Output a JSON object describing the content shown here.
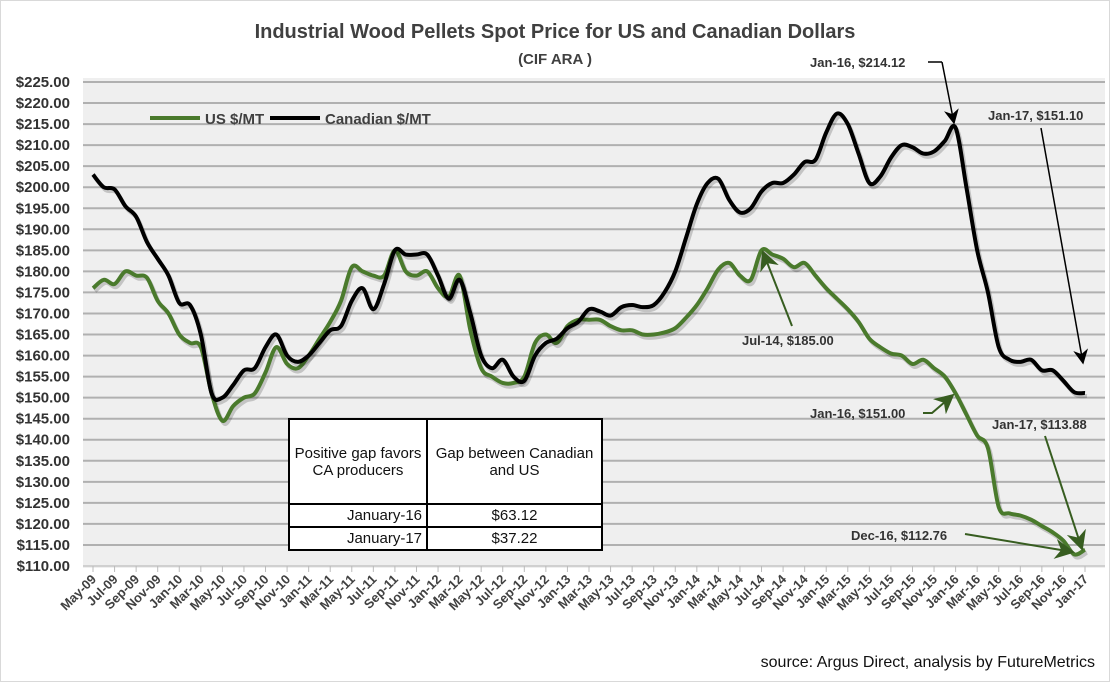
{
  "chart_data": {
    "type": "line",
    "title": "Industrial Wood Pellets Spot Price for US and Canadian Dollars",
    "subtitle": "(CIF ARA )",
    "xlabel": "",
    "ylabel": "",
    "ylim": [
      110,
      225
    ],
    "ytick_step": 5,
    "ytick_labels": [
      "$110.00",
      "$115.00",
      "$120.00",
      "$125.00",
      "$130.00",
      "$135.00",
      "$140.00",
      "$145.00",
      "$150.00",
      "$155.00",
      "$160.00",
      "$165.00",
      "$170.00",
      "$175.00",
      "$180.00",
      "$185.00",
      "$190.00",
      "$195.00",
      "$200.00",
      "$205.00",
      "$210.00",
      "$215.00",
      "$220.00",
      "$225.00"
    ],
    "xtick_labels": [
      "May-09",
      "Jul-09",
      "Sep-09",
      "Nov-09",
      "Jan-10",
      "Mar-10",
      "May-10",
      "Jul-10",
      "Sep-10",
      "Nov-10",
      "Jan-11",
      "Mar-11",
      "May-11",
      "Jul-11",
      "Sep-11",
      "Nov-11",
      "Jan-12",
      "Mar-12",
      "May-12",
      "Jul-12",
      "Sep-12",
      "Nov-12",
      "Jan-13",
      "Mar-13",
      "May-13",
      "Jul-13",
      "Sep-13",
      "Nov-13",
      "Jan-14",
      "Mar-14",
      "May-14",
      "Jul-14",
      "Sep-14",
      "Nov-14",
      "Jan-15",
      "Mar-15",
      "May-15",
      "Jul-15",
      "Sep-15",
      "Nov-15",
      "Jan-16",
      "Mar-16",
      "May-16",
      "Jul-16",
      "Sep-16",
      "Nov-16",
      "Jan-17"
    ],
    "grid": true,
    "legend_position": "top-left",
    "series": [
      {
        "name": "US $/MT",
        "color": "#4a7a2c",
        "values": [
          176,
          178,
          177,
          180,
          179,
          178.5,
          173,
          170,
          165,
          163,
          162,
          151,
          144.5,
          148,
          150,
          151,
          156,
          162,
          158,
          157,
          160,
          164,
          168,
          173,
          181,
          180,
          179,
          179,
          185,
          180,
          179,
          180,
          176,
          174,
          179,
          166,
          157,
          155,
          153.5,
          153.5,
          155,
          163,
          165,
          163,
          167,
          168.5,
          168.5,
          168.5,
          167,
          166,
          166,
          165,
          165,
          165.5,
          166.5,
          169,
          172,
          176,
          180.5,
          182,
          179,
          178,
          185,
          184,
          183,
          181,
          182,
          179,
          176,
          173.5,
          171,
          168,
          164,
          162,
          160.5,
          160,
          158,
          159,
          157,
          155,
          151,
          146,
          141,
          138,
          124,
          122.5,
          122,
          121,
          119.5,
          118,
          116,
          112.76,
          113.88
        ]
      },
      {
        "name": "Canadian $/MT",
        "color": "#000000",
        "values": [
          203,
          200,
          199.5,
          195.5,
          193,
          187,
          183,
          179,
          172.5,
          172,
          165,
          151,
          150,
          153,
          156.5,
          157,
          162,
          165,
          160,
          158.5,
          160,
          163,
          166,
          167,
          173,
          176,
          171,
          177,
          185,
          184,
          184,
          184,
          179,
          173.5,
          178,
          170,
          160,
          157,
          159,
          155,
          154,
          160,
          163,
          164,
          166.5,
          168,
          171,
          170.5,
          169.5,
          171.5,
          172,
          171.5,
          172,
          175,
          180,
          188,
          196,
          201,
          202,
          197,
          194,
          195,
          199,
          201,
          201,
          203,
          206,
          206.5,
          213,
          217.5,
          215,
          208,
          201,
          202.5,
          207,
          210,
          209.5,
          208,
          208.5,
          211,
          214.12,
          200,
          185,
          175,
          162,
          159,
          158.5,
          159,
          156.5,
          156.5,
          154,
          151.3,
          151.1
        ]
      }
    ],
    "annotations": [
      {
        "text": "Jan-16,  $214.12",
        "series": "Canadian $/MT",
        "x": "Jan-16",
        "value": 214.12
      },
      {
        "text": "Jan-17,  $151.10",
        "series": "Canadian $/MT",
        "x": "Jan-17",
        "value": 151.1
      },
      {
        "text": "Jul-14,  $185.00",
        "series": "US $/MT",
        "x": "Jul-14",
        "value": 185.0
      },
      {
        "text": "Jan-16,  $151.00",
        "series": "US $/MT",
        "x": "Jan-16",
        "value": 151.0
      },
      {
        "text": "Jan-17,  $113.88",
        "series": "US $/MT",
        "x": "Jan-17",
        "value": 113.88
      },
      {
        "text": "Dec-16, $112.76",
        "series": "US $/MT",
        "x": "Dec-16",
        "value": 112.76
      }
    ]
  },
  "table": {
    "header": [
      "Positive gap favors CA producers",
      "Gap between Canadian and US"
    ],
    "rows": [
      [
        "January-16",
        "$63.12"
      ],
      [
        "January-17",
        "$37.22"
      ]
    ]
  },
  "source": "source: Argus Direct, analysis by FutureMetrics"
}
